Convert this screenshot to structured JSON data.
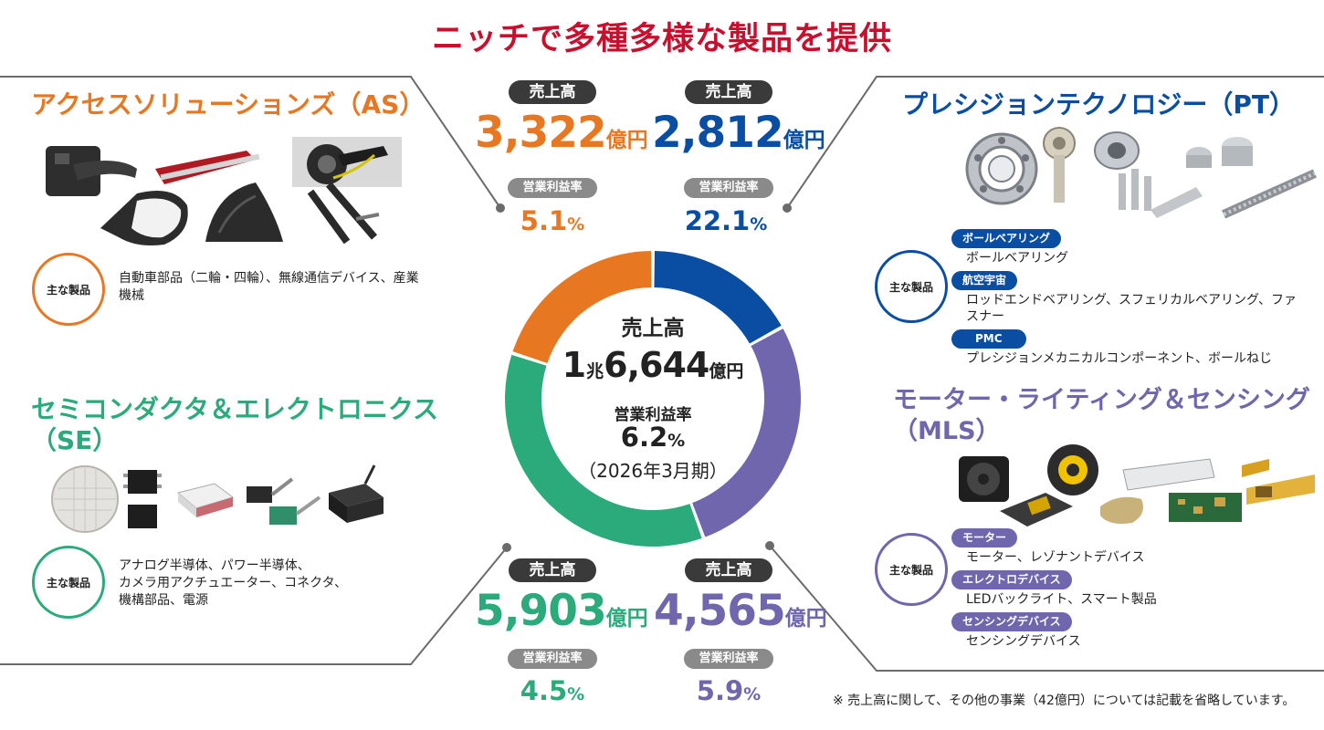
{
  "title": "ニッチで多種多様な製品を提供",
  "colors": {
    "as": "#e87722",
    "pt": "#0a4ea3",
    "se": "#2bab7b",
    "mls": "#6f66ad",
    "title": "#c8102e"
  },
  "center": {
    "sales_label": "売上高",
    "sales_value": "1兆6,644億円",
    "sales_prefix": "1",
    "sales_cho": "兆",
    "sales_main": "6,644",
    "sales_unit": "億円",
    "margin_label": "営業利益率",
    "margin_value": "6.2",
    "margin_unit": "%",
    "period": "（2026年3月期）"
  },
  "donut": {
    "segments": [
      {
        "name": "PT",
        "sales": 2812,
        "color": "#0a4ea3"
      },
      {
        "name": "MLS",
        "sales": 4565,
        "color": "#6f66ad"
      },
      {
        "name": "SE",
        "sales": 5903,
        "color": "#2bab7b"
      },
      {
        "name": "AS",
        "sales": 3322,
        "color": "#e87722"
      }
    ]
  },
  "segments": {
    "as": {
      "title": "アクセスソリューションズ（AS）",
      "sales_label": "売上高",
      "sales_value": "3,322",
      "sales_unit": "億円",
      "margin_label": "営業利益率",
      "margin_value": "5.1",
      "margin_unit": "%",
      "badge": "主な製品",
      "products": "自動車部品（二輪・四輪）、無線通信デバイス、産業機械"
    },
    "pt": {
      "title": "プレシジョンテクノロジー（PT）",
      "sales_label": "売上高",
      "sales_value": "2,812",
      "sales_unit": "億円",
      "margin_label": "営業利益率",
      "margin_value": "22.1",
      "margin_unit": "%",
      "badge": "主な製品",
      "categories": [
        {
          "label": "ボールベアリング",
          "text": "ボールベアリング"
        },
        {
          "label": "航空宇宙",
          "text": "ロッドエンドベアリング、スフェリカルベアリング、ファスナー"
        },
        {
          "label": "PMC",
          "text": "プレシジョンメカニカルコンポーネント、ボールねじ"
        }
      ]
    },
    "se": {
      "title_line1": "セミコンダクタ＆エレクトロニクス",
      "title_line2": "（SE）",
      "sales_label": "売上高",
      "sales_value": "5,903",
      "sales_unit": "億円",
      "margin_label": "営業利益率",
      "margin_value": "4.5",
      "margin_unit": "%",
      "badge": "主な製品",
      "products_line1": "アナログ半導体、パワー半導体、",
      "products_line2": "カメラ用アクチュエーター、コネクタ、",
      "products_line3": "機構部品、電源"
    },
    "mls": {
      "title_line1": "モーター・ライティング＆センシング",
      "title_line2": "（MLS）",
      "sales_label": "売上高",
      "sales_value": "4,565",
      "sales_unit": "億円",
      "margin_label": "営業利益率",
      "margin_value": "5.9",
      "margin_unit": "%",
      "badge": "主な製品",
      "categories": [
        {
          "label": "モーター",
          "text": "モーター、レゾナントデバイス"
        },
        {
          "label": "エレクトロデバイス",
          "text": "LEDバックライト、スマート製品"
        },
        {
          "label": "センシングデバイス",
          "text": "センシングデバイス"
        }
      ]
    }
  },
  "footnote": "※ 売上高に関して、その他の事業（42億円）については記載を省略しています。"
}
